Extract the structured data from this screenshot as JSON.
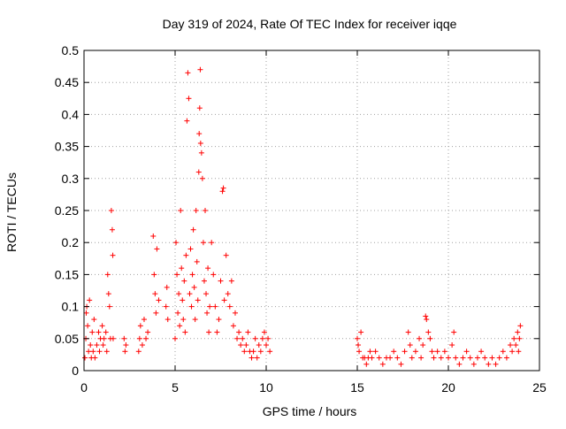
{
  "chart_data": {
    "type": "scatter",
    "title": "Day 319 of 2024, Rate Of TEC Index for receiver iqqe",
    "xlabel": "GPS time / hours",
    "ylabel": "ROTI / TECUs",
    "xlim": [
      0,
      25
    ],
    "ylim": [
      0,
      0.5
    ],
    "x_ticks": [
      0,
      5,
      10,
      15,
      20,
      25
    ],
    "x_tick_labels": [
      "0",
      "5",
      "10",
      "15",
      "20",
      "25"
    ],
    "y_ticks": [
      0,
      0.05,
      0.1,
      0.15,
      0.2,
      0.25,
      0.3,
      0.35,
      0.4,
      0.45,
      0.5
    ],
    "y_tick_labels": [
      "0",
      "0.05",
      "0.1",
      "0.15",
      "0.2",
      "0.25",
      "0.3",
      "0.35",
      "0.4",
      "0.45",
      "0.5"
    ],
    "grid": true,
    "marker": "+",
    "colors": {
      "marker": "#ff0000",
      "grid": "#a0a0a0",
      "axis": "#000000"
    },
    "series": [
      {
        "name": "ROTI",
        "points": [
          [
            0.05,
            0.02
          ],
          [
            0.1,
            0.05
          ],
          [
            0.12,
            0.09
          ],
          [
            0.15,
            0.1
          ],
          [
            0.2,
            0.07
          ],
          [
            0.25,
            0.03
          ],
          [
            0.3,
            0.11
          ],
          [
            0.35,
            0.04
          ],
          [
            0.4,
            0.02
          ],
          [
            0.45,
            0.06
          ],
          [
            0.5,
            0.03
          ],
          [
            0.55,
            0.08
          ],
          [
            0.6,
            0.02
          ],
          [
            0.7,
            0.04
          ],
          [
            0.8,
            0.06
          ],
          [
            0.85,
            0.03
          ],
          [
            0.9,
            0.05
          ],
          [
            1.0,
            0.07
          ],
          [
            1.05,
            0.04
          ],
          [
            1.1,
            0.05
          ],
          [
            1.2,
            0.06
          ],
          [
            1.25,
            0.03
          ],
          [
            1.3,
            0.15
          ],
          [
            1.35,
            0.12
          ],
          [
            1.4,
            0.1
          ],
          [
            1.45,
            0.05
          ],
          [
            1.5,
            0.25
          ],
          [
            1.55,
            0.22
          ],
          [
            1.58,
            0.18
          ],
          [
            1.6,
            0.05
          ],
          [
            2.2,
            0.05
          ],
          [
            2.25,
            0.03
          ],
          [
            2.3,
            0.04
          ],
          [
            3.0,
            0.03
          ],
          [
            3.05,
            0.05
          ],
          [
            3.1,
            0.07
          ],
          [
            3.2,
            0.04
          ],
          [
            3.3,
            0.08
          ],
          [
            3.4,
            0.05
          ],
          [
            3.5,
            0.06
          ],
          [
            3.8,
            0.21
          ],
          [
            3.85,
            0.15
          ],
          [
            3.9,
            0.12
          ],
          [
            3.95,
            0.09
          ],
          [
            4.0,
            0.19
          ],
          [
            4.1,
            0.11
          ],
          [
            4.5,
            0.1
          ],
          [
            4.55,
            0.13
          ],
          [
            4.6,
            0.08
          ],
          [
            5.0,
            0.05
          ],
          [
            5.05,
            0.2
          ],
          [
            5.1,
            0.15
          ],
          [
            5.15,
            0.09
          ],
          [
            5.2,
            0.12
          ],
          [
            5.25,
            0.07
          ],
          [
            5.3,
            0.25
          ],
          [
            5.35,
            0.16
          ],
          [
            5.4,
            0.11
          ],
          [
            5.45,
            0.08
          ],
          [
            5.5,
            0.14
          ],
          [
            5.55,
            0.06
          ],
          [
            5.6,
            0.18
          ],
          [
            5.65,
            0.39
          ],
          [
            5.7,
            0.465
          ],
          [
            5.75,
            0.425
          ],
          [
            5.8,
            0.12
          ],
          [
            5.85,
            0.19
          ],
          [
            5.9,
            0.1
          ],
          [
            5.95,
            0.15
          ],
          [
            6.0,
            0.22
          ],
          [
            6.05,
            0.13
          ],
          [
            6.1,
            0.08
          ],
          [
            6.15,
            0.25
          ],
          [
            6.2,
            0.17
          ],
          [
            6.25,
            0.11
          ],
          [
            6.3,
            0.31
          ],
          [
            6.32,
            0.37
          ],
          [
            6.35,
            0.41
          ],
          [
            6.38,
            0.47
          ],
          [
            6.4,
            0.355
          ],
          [
            6.45,
            0.34
          ],
          [
            6.5,
            0.3
          ],
          [
            6.55,
            0.2
          ],
          [
            6.6,
            0.14
          ],
          [
            6.65,
            0.25
          ],
          [
            6.7,
            0.12
          ],
          [
            6.75,
            0.09
          ],
          [
            6.8,
            0.16
          ],
          [
            6.85,
            0.06
          ],
          [
            6.9,
            0.1
          ],
          [
            7.0,
            0.2
          ],
          [
            7.1,
            0.15
          ],
          [
            7.2,
            0.1
          ],
          [
            7.3,
            0.06
          ],
          [
            7.4,
            0.08
          ],
          [
            7.5,
            0.14
          ],
          [
            7.6,
            0.28
          ],
          [
            7.65,
            0.285
          ],
          [
            7.7,
            0.11
          ],
          [
            7.8,
            0.18
          ],
          [
            7.9,
            0.12
          ],
          [
            8.0,
            0.1
          ],
          [
            8.1,
            0.14
          ],
          [
            8.2,
            0.07
          ],
          [
            8.3,
            0.09
          ],
          [
            8.4,
            0.05
          ],
          [
            8.5,
            0.06
          ],
          [
            8.6,
            0.04
          ],
          [
            8.7,
            0.05
          ],
          [
            8.8,
            0.03
          ],
          [
            8.9,
            0.04
          ],
          [
            9.0,
            0.06
          ],
          [
            9.1,
            0.03
          ],
          [
            9.2,
            0.02
          ],
          [
            9.3,
            0.03
          ],
          [
            9.4,
            0.05
          ],
          [
            9.5,
            0.02
          ],
          [
            9.6,
            0.04
          ],
          [
            9.7,
            0.03
          ],
          [
            9.8,
            0.05
          ],
          [
            9.9,
            0.06
          ],
          [
            10.0,
            0.04
          ],
          [
            10.1,
            0.05
          ],
          [
            10.2,
            0.03
          ],
          [
            15.0,
            0.05
          ],
          [
            15.05,
            0.04
          ],
          [
            15.1,
            0.03
          ],
          [
            15.2,
            0.06
          ],
          [
            15.3,
            0.02
          ],
          [
            15.4,
            0.02
          ],
          [
            15.5,
            0.01
          ],
          [
            15.6,
            0.02
          ],
          [
            15.7,
            0.03
          ],
          [
            15.8,
            0.02
          ],
          [
            16.0,
            0.03
          ],
          [
            16.2,
            0.02
          ],
          [
            16.4,
            0.01
          ],
          [
            16.6,
            0.02
          ],
          [
            16.8,
            0.02
          ],
          [
            17.0,
            0.03
          ],
          [
            17.2,
            0.02
          ],
          [
            17.4,
            0.01
          ],
          [
            17.6,
            0.03
          ],
          [
            17.8,
            0.06
          ],
          [
            17.9,
            0.04
          ],
          [
            18.0,
            0.02
          ],
          [
            18.2,
            0.03
          ],
          [
            18.4,
            0.05
          ],
          [
            18.5,
            0.02
          ],
          [
            18.6,
            0.04
          ],
          [
            18.75,
            0.085
          ],
          [
            18.8,
            0.08
          ],
          [
            18.9,
            0.06
          ],
          [
            19.0,
            0.05
          ],
          [
            19.1,
            0.03
          ],
          [
            19.2,
            0.02
          ],
          [
            19.4,
            0.03
          ],
          [
            19.6,
            0.02
          ],
          [
            19.8,
            0.03
          ],
          [
            20.0,
            0.02
          ],
          [
            20.2,
            0.04
          ],
          [
            20.3,
            0.06
          ],
          [
            20.4,
            0.02
          ],
          [
            20.6,
            0.01
          ],
          [
            20.8,
            0.02
          ],
          [
            21.0,
            0.03
          ],
          [
            21.2,
            0.02
          ],
          [
            21.4,
            0.01
          ],
          [
            21.6,
            0.02
          ],
          [
            21.8,
            0.03
          ],
          [
            22.0,
            0.02
          ],
          [
            22.2,
            0.01
          ],
          [
            22.4,
            0.02
          ],
          [
            22.6,
            0.01
          ],
          [
            22.8,
            0.02
          ],
          [
            23.0,
            0.03
          ],
          [
            23.2,
            0.02
          ],
          [
            23.4,
            0.04
          ],
          [
            23.5,
            0.03
          ],
          [
            23.6,
            0.05
          ],
          [
            23.7,
            0.04
          ],
          [
            23.8,
            0.06
          ],
          [
            23.85,
            0.03
          ],
          [
            23.9,
            0.05
          ],
          [
            23.95,
            0.07
          ]
        ]
      }
    ]
  }
}
